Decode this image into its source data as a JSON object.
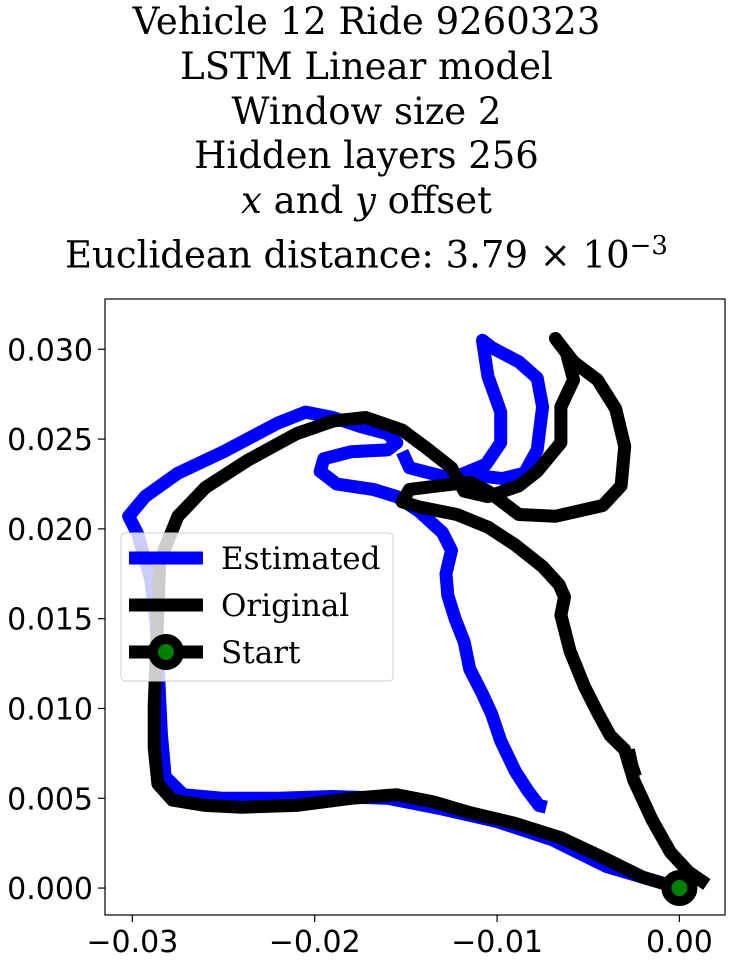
{
  "title": {
    "line1": "Vehicle 12 Ride 9260323",
    "line2": "LSTM Linear model",
    "line3": "Window size 2",
    "line4": "Hidden layers 256",
    "line5_x": "x",
    "line5_and": " and ",
    "line5_y": "y",
    "line5_rest": " offset",
    "line6_prefix": "Euclidean distance: 3.79",
    "line6_times": " × 10",
    "line6_exp": "−3"
  },
  "chart_data": {
    "type": "line",
    "xlim": [
      -0.0315,
      0.0025
    ],
    "ylim": [
      -0.0015,
      0.0328
    ],
    "xticks": [
      -0.03,
      -0.02,
      -0.01,
      0.0
    ],
    "xtick_labels": [
      "−0.03",
      "−0.02",
      "−0.01",
      "0.00"
    ],
    "yticks": [
      0.0,
      0.005,
      0.01,
      0.015,
      0.02,
      0.025,
      0.03
    ],
    "ytick_labels": [
      "0.000",
      "0.005",
      "0.010",
      "0.015",
      "0.020",
      "0.025",
      "0.030"
    ],
    "grid": false,
    "legend_position": "center-left",
    "series": [
      {
        "name": "Estimated",
        "color": "#0000ff",
        "points": [
          [
            0.0,
            0.0
          ],
          [
            -0.001,
            0.0003
          ],
          [
            -0.004,
            0.0012
          ],
          [
            -0.007,
            0.0027
          ],
          [
            -0.01,
            0.0037
          ],
          [
            -0.013,
            0.0044
          ],
          [
            -0.016,
            0.005
          ],
          [
            -0.019,
            0.0051
          ],
          [
            -0.022,
            0.005
          ],
          [
            -0.025,
            0.005
          ],
          [
            -0.0272,
            0.0052
          ],
          [
            -0.0282,
            0.0062
          ],
          [
            -0.0284,
            0.0085
          ],
          [
            -0.0285,
            0.0105
          ],
          [
            -0.0286,
            0.0128
          ],
          [
            -0.0287,
            0.0148
          ],
          [
            -0.029,
            0.0172
          ],
          [
            -0.0297,
            0.0197
          ],
          [
            -0.0302,
            0.0207
          ],
          [
            -0.0293,
            0.0218
          ],
          [
            -0.0275,
            0.0231
          ],
          [
            -0.025,
            0.0243
          ],
          [
            -0.022,
            0.0259
          ],
          [
            -0.0205,
            0.0265
          ],
          [
            -0.019,
            0.0262
          ],
          [
            -0.0175,
            0.0257
          ],
          [
            -0.016,
            0.0253
          ],
          [
            -0.0155,
            0.0248
          ],
          [
            -0.016,
            0.0244
          ],
          [
            -0.018,
            0.0243
          ],
          [
            -0.0195,
            0.0239
          ],
          [
            -0.0197,
            0.0232
          ],
          [
            -0.0188,
            0.0225
          ],
          [
            -0.0168,
            0.0222
          ],
          [
            -0.0155,
            0.0218
          ],
          [
            -0.0143,
            0.021
          ],
          [
            -0.013,
            0.0198
          ],
          [
            -0.0125,
            0.0188
          ],
          [
            -0.0128,
            0.0175
          ],
          [
            -0.0127,
            0.0163
          ],
          [
            -0.0123,
            0.015
          ],
          [
            -0.0118,
            0.0137
          ],
          [
            -0.0115,
            0.0122
          ],
          [
            -0.0108,
            0.0108
          ],
          [
            -0.0103,
            0.0097
          ],
          [
            -0.0098,
            0.0082
          ],
          [
            -0.009,
            0.0065
          ],
          [
            -0.0083,
            0.0054
          ],
          [
            -0.0077,
            0.0046
          ],
          [
            -0.0073,
            0.0045
          ]
        ]
      },
      {
        "name": "Estimated",
        "color": "#0000ff",
        "points": [
          [
            -0.0115,
            0.0233
          ],
          [
            -0.0105,
            0.0229
          ],
          [
            -0.0097,
            0.0228
          ],
          [
            -0.0085,
            0.0231
          ],
          [
            -0.0078,
            0.0244
          ],
          [
            -0.0075,
            0.0268
          ],
          [
            -0.0078,
            0.0284
          ],
          [
            -0.0088,
            0.0293
          ],
          [
            -0.0103,
            0.0301
          ],
          [
            -0.0108,
            0.0305
          ],
          [
            -0.0105,
            0.0285
          ],
          [
            -0.0098,
            0.0265
          ],
          [
            -0.0098,
            0.0248
          ],
          [
            -0.0106,
            0.0236
          ],
          [
            -0.0125,
            0.0228
          ],
          [
            -0.0148,
            0.0234
          ],
          [
            -0.0152,
            0.0243
          ]
        ]
      },
      {
        "name": "Original",
        "color": "#000000",
        "points": [
          [
            0.0015,
            0.0002
          ],
          [
            0.0005,
            0.0009
          ],
          [
            -0.0005,
            0.002
          ],
          [
            -0.0015,
            0.0038
          ],
          [
            -0.0025,
            0.006
          ],
          [
            -0.003,
            0.0077
          ],
          [
            -0.0038,
            0.0085
          ],
          [
            -0.0045,
            0.0098
          ],
          [
            -0.0052,
            0.0112
          ],
          [
            -0.006,
            0.0132
          ],
          [
            -0.0065,
            0.0152
          ],
          [
            -0.0063,
            0.0162
          ],
          [
            -0.0066,
            0.0169
          ],
          [
            -0.0075,
            0.0179
          ],
          [
            -0.009,
            0.0191
          ],
          [
            -0.0105,
            0.0201
          ],
          [
            -0.0122,
            0.0208
          ],
          [
            -0.0142,
            0.0212
          ],
          [
            -0.0152,
            0.0215
          ],
          [
            -0.0148,
            0.0222
          ],
          [
            -0.0132,
            0.0224
          ],
          [
            -0.0115,
            0.0226
          ],
          [
            -0.0105,
            0.0221
          ],
          [
            -0.0088,
            0.0208
          ],
          [
            -0.0068,
            0.0207
          ],
          [
            -0.0042,
            0.0213
          ],
          [
            -0.0032,
            0.0224
          ],
          [
            -0.003,
            0.0246
          ],
          [
            -0.0035,
            0.0267
          ],
          [
            -0.0045,
            0.0283
          ],
          [
            -0.0058,
            0.0293
          ],
          [
            -0.0068,
            0.0306
          ],
          [
            -0.0062,
            0.0298
          ],
          [
            -0.0058,
            0.0283
          ],
          [
            -0.0065,
            0.0268
          ],
          [
            -0.0065,
            0.0248
          ],
          [
            -0.0078,
            0.0232
          ],
          [
            -0.0088,
            0.0224
          ],
          [
            -0.0105,
            0.0218
          ],
          [
            -0.0118,
            0.0221
          ],
          [
            -0.0125,
            0.0234
          ],
          [
            -0.014,
            0.0246
          ],
          [
            -0.0152,
            0.0255
          ],
          [
            -0.0172,
            0.0262
          ],
          [
            -0.019,
            0.026
          ],
          [
            -0.021,
            0.0253
          ],
          [
            -0.0237,
            0.0238
          ],
          [
            -0.026,
            0.0223
          ],
          [
            -0.0275,
            0.0207
          ],
          [
            -0.0285,
            0.0182
          ],
          [
            -0.0286,
            0.0155
          ],
          [
            -0.0287,
            0.0128
          ],
          [
            -0.0288,
            0.0102
          ],
          [
            -0.0288,
            0.0078
          ],
          [
            -0.0286,
            0.0058
          ],
          [
            -0.0278,
            0.0049
          ],
          [
            -0.026,
            0.0046
          ],
          [
            -0.024,
            0.0045
          ],
          [
            -0.021,
            0.0046
          ],
          [
            -0.018,
            0.005
          ],
          [
            -0.0155,
            0.0052
          ],
          [
            -0.0135,
            0.0048
          ],
          [
            -0.0115,
            0.0042
          ],
          [
            -0.009,
            0.0036
          ],
          [
            -0.0065,
            0.0028
          ],
          [
            -0.004,
            0.0016
          ],
          [
            -0.002,
            0.0006
          ],
          [
            0.0,
            0.0
          ]
        ]
      },
      {
        "name": "Original",
        "color": "#000000",
        "points": [
          [
            -0.0028,
            0.0077
          ],
          [
            -0.0026,
            0.0068
          ],
          [
            -0.0024,
            0.0062
          ]
        ]
      }
    ],
    "start_marker": {
      "name": "Start",
      "point": [
        0.0,
        0.0
      ],
      "face_color": "#008000",
      "edge_color": "#000000"
    },
    "legend": [
      {
        "label": "Estimated",
        "color": "#0000ff",
        "marker": false
      },
      {
        "label": "Original",
        "color": "#000000",
        "marker": false
      },
      {
        "label": "Start",
        "color": "#000000",
        "marker": true
      }
    ]
  }
}
